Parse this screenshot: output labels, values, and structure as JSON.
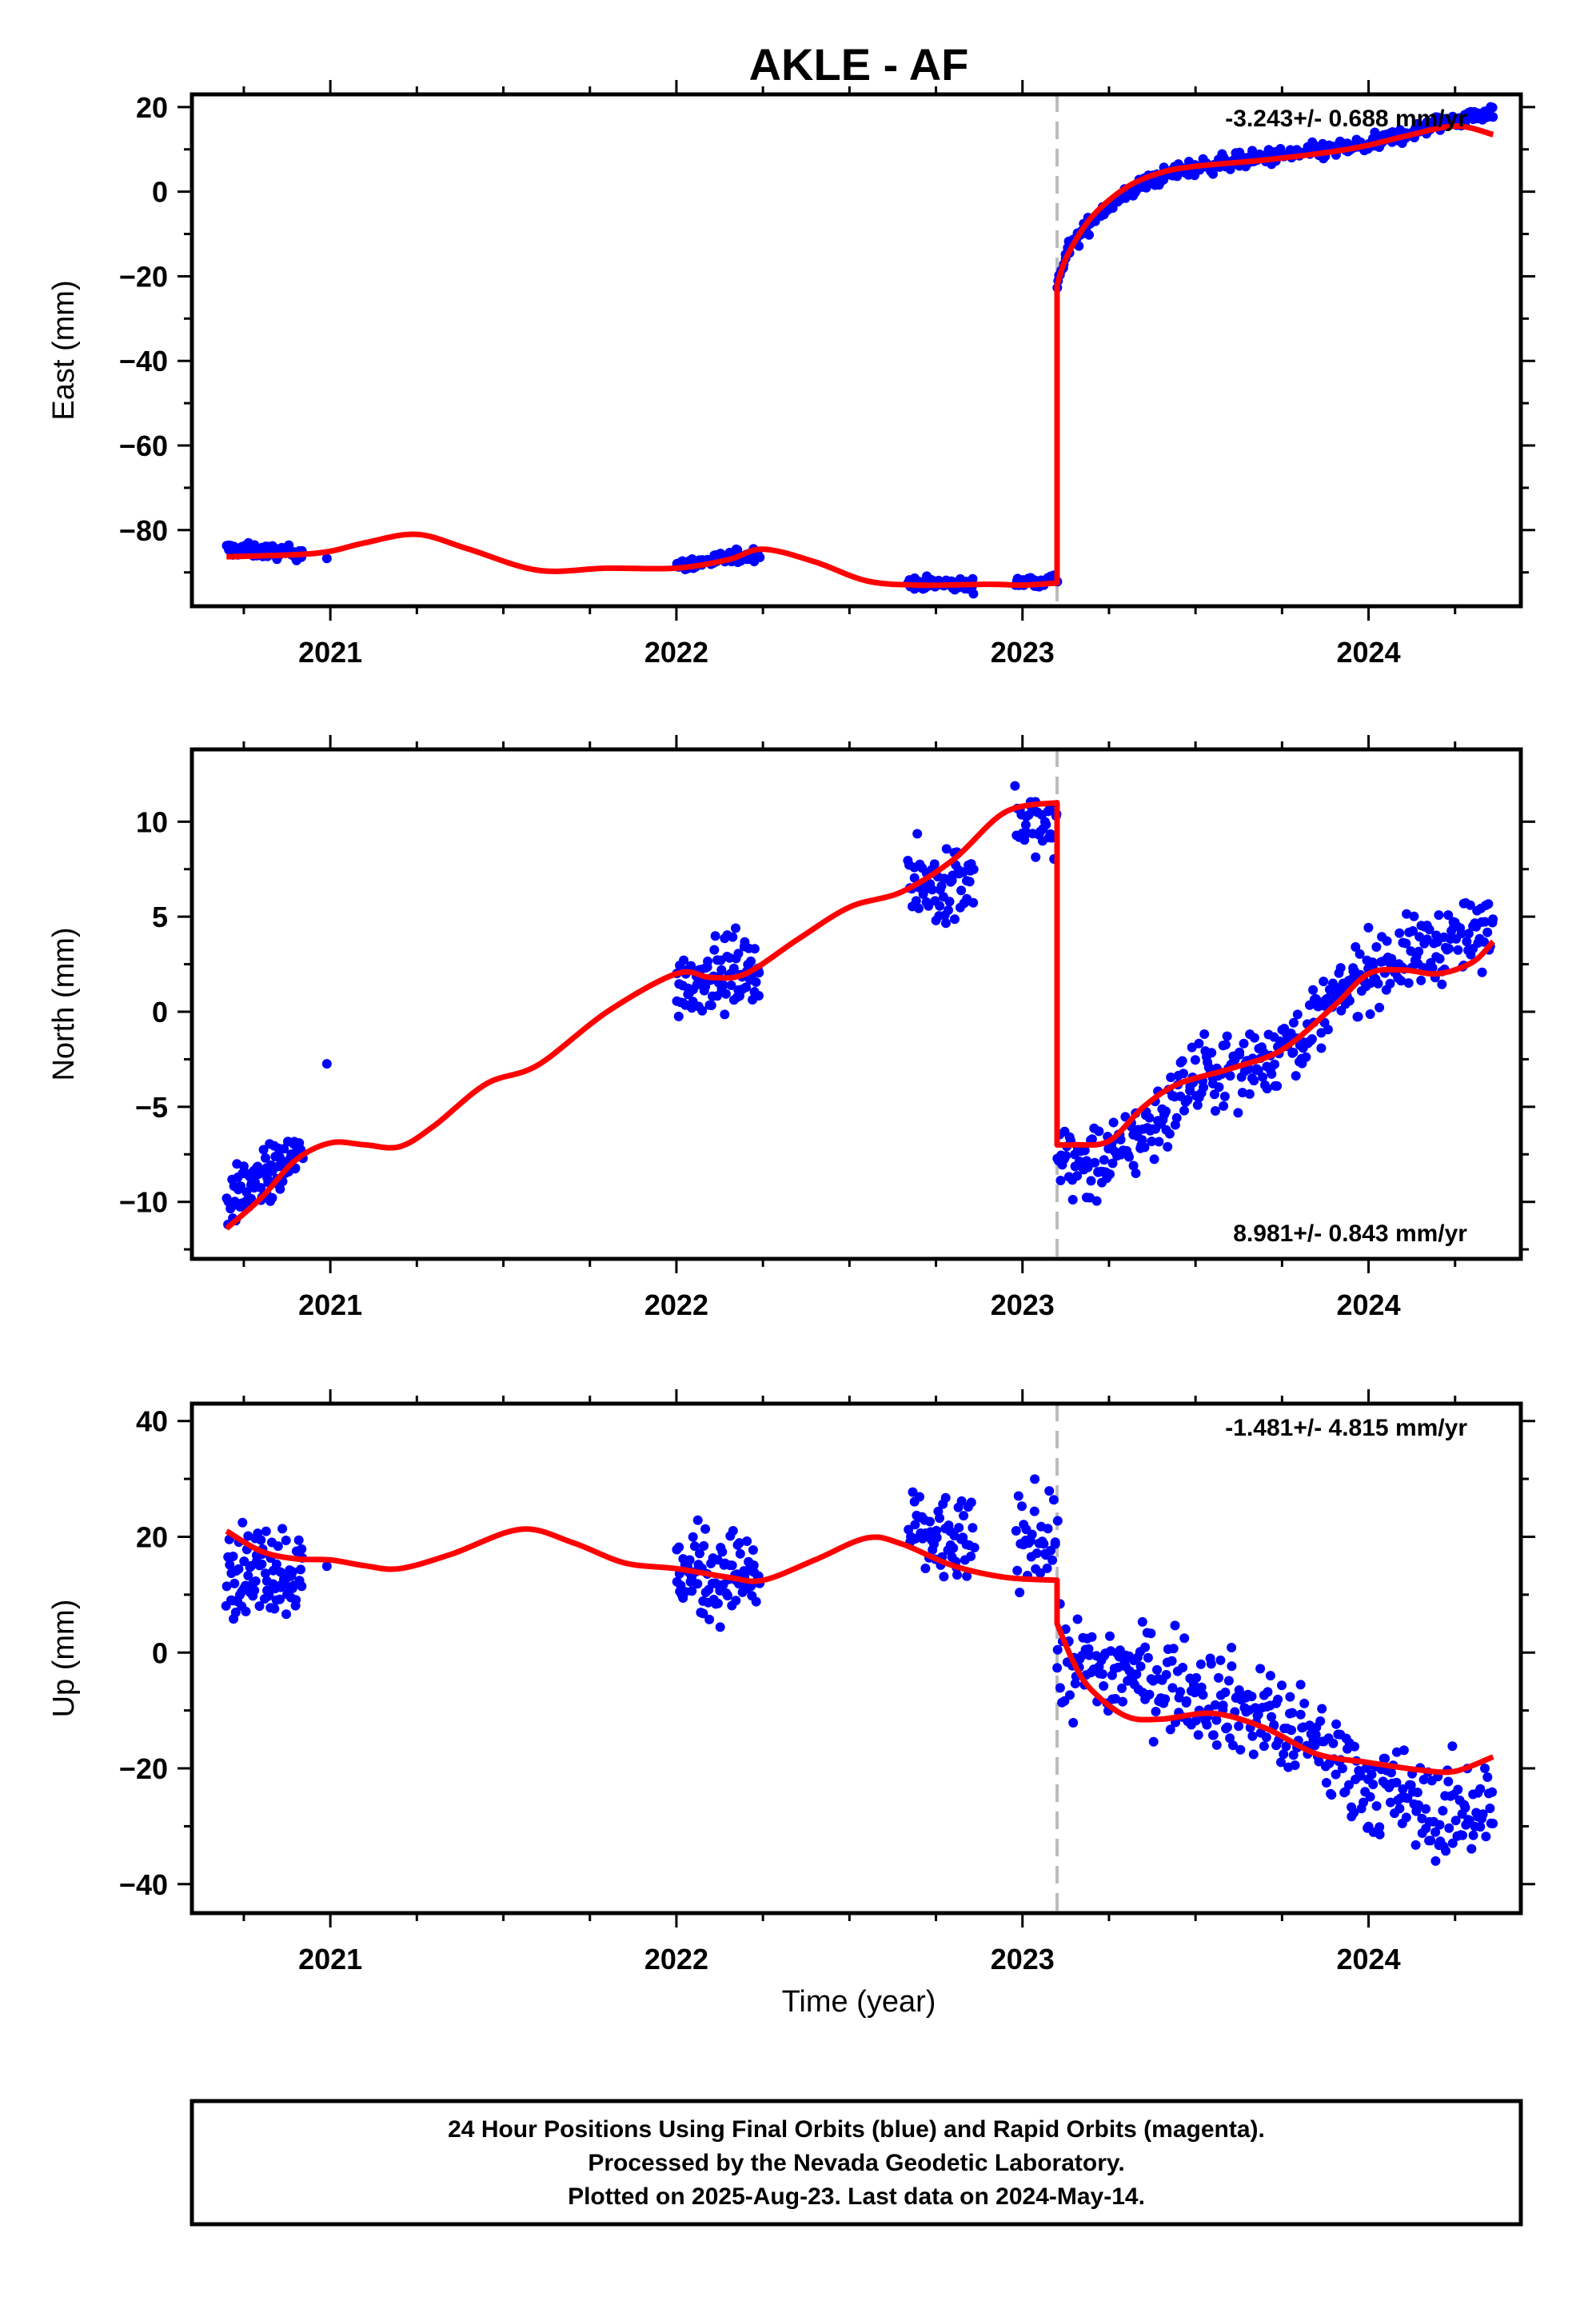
{
  "title": "AKLE - AF",
  "xlabel": "Time (year)",
  "footer": {
    "line1": "24 Hour Positions Using Final Orbits (blue) and Rapid Orbits (magenta).",
    "line2": "Processed by the Nevada Geodetic Laboratory.",
    "line3": "Plotted on 2025-Aug-23. Last data on 2024-May-14."
  },
  "colors": {
    "final_orbits": "#0000ff",
    "rapid_orbits": "#ff00ff",
    "model_fit": "#ff0000",
    "event_line": "#bbbbbb"
  },
  "chart_data": [
    {
      "type": "scatter",
      "panel": "east",
      "ylabel": "East (mm)",
      "rate_label": "-3.243+/- 0.688 mm/yr",
      "rate_position": "top-right",
      "xlim": [
        2020.6,
        2024.44
      ],
      "ylim": [
        -98,
        23
      ],
      "xticks": [
        2021,
        2022,
        2023,
        2024
      ],
      "xtick_labels": [
        "2021",
        "2022",
        "2023",
        "2024"
      ],
      "yticks": [
        20,
        0,
        -20,
        -40,
        -60,
        -80
      ],
      "ytick_labels": [
        "20",
        "0",
        "−20",
        "−40",
        "−60",
        "−80"
      ],
      "event_x": 2023.1,
      "data_segments": [
        {
          "x0": 2020.7,
          "x1": 2020.92,
          "trend": [
            [
              2020.7,
              -84.5
            ],
            [
              2020.92,
              -85.5
            ]
          ],
          "noise": 1.3,
          "n": 80
        },
        {
          "x0": 2020.99,
          "x1": 2020.99,
          "trend": [
            [
              2020.99,
              -86.5
            ]
          ],
          "noise": 0.3,
          "n": 1
        },
        {
          "x0": 2022.0,
          "x1": 2022.24,
          "trend": [
            [
              2022.0,
              -88.5
            ],
            [
              2022.24,
              -85.5
            ]
          ],
          "noise": 1.3,
          "n": 80
        },
        {
          "x0": 2022.67,
          "x1": 2022.86,
          "trend": [
            [
              2022.67,
              -92.5
            ],
            [
              2022.86,
              -93
            ]
          ],
          "noise": 1.2,
          "n": 70
        },
        {
          "x0": 2022.98,
          "x1": 2023.1,
          "trend": [
            [
              2022.98,
              -92.5
            ],
            [
              2023.1,
              -91.5
            ]
          ],
          "noise": 1.2,
          "n": 35
        },
        {
          "x0": 2023.1,
          "x1": 2024.36,
          "trend": [
            [
              2023.1,
              -22
            ],
            [
              2023.13,
              -14
            ],
            [
              2023.22,
              -5
            ],
            [
              2023.35,
              2
            ],
            [
              2023.45,
              5
            ],
            [
              2023.6,
              7
            ],
            [
              2023.8,
              9
            ],
            [
              2024.0,
              11
            ],
            [
              2024.2,
              16
            ],
            [
              2024.36,
              19
            ]
          ],
          "noise": 1.6,
          "n": 380
        }
      ],
      "model_fit": [
        [
          2020.7,
          -86.3
        ],
        [
          2020.9,
          -85.8
        ],
        [
          2021.0,
          -85.0
        ],
        [
          2021.1,
          -83.0
        ],
        [
          2021.25,
          -81.0
        ],
        [
          2021.4,
          -84.5
        ],
        [
          2021.6,
          -89.5
        ],
        [
          2021.8,
          -89.0
        ],
        [
          2022.0,
          -89.0
        ],
        [
          2022.15,
          -87.0
        ],
        [
          2022.25,
          -84.5
        ],
        [
          2022.4,
          -87.5
        ],
        [
          2022.55,
          -92.0
        ],
        [
          2022.7,
          -93.0
        ],
        [
          2022.9,
          -92.8
        ],
        [
          2023.0,
          -93.0
        ],
        [
          2023.1,
          -92.5
        ],
        [
          2023.1,
          -22
        ],
        [
          2023.13,
          -15
        ],
        [
          2023.2,
          -6
        ],
        [
          2023.3,
          1
        ],
        [
          2023.4,
          4.5
        ],
        [
          2023.5,
          6
        ],
        [
          2023.7,
          7.5
        ],
        [
          2023.9,
          9.5
        ],
        [
          2024.0,
          11
        ],
        [
          2024.1,
          13
        ],
        [
          2024.25,
          15.5
        ],
        [
          2024.36,
          13.5
        ]
      ]
    },
    {
      "type": "scatter",
      "panel": "north",
      "ylabel": "North (mm)",
      "rate_label": "8.981+/- 0.843 mm/yr",
      "rate_position": "bottom-right",
      "xlim": [
        2020.6,
        2024.44
      ],
      "ylim": [
        -13,
        13.8
      ],
      "xticks": [
        2021,
        2022,
        2023,
        2024
      ],
      "xtick_labels": [
        "2021",
        "2022",
        "2023",
        "2024"
      ],
      "yticks": [
        10,
        5,
        0,
        -5,
        -10
      ],
      "ytick_labels": [
        "10",
        "5",
        "0",
        "−5",
        "−10"
      ],
      "event_x": 2023.1,
      "data_segments": [
        {
          "x0": 2020.7,
          "x1": 2020.92,
          "trend": [
            [
              2020.7,
              -10
            ],
            [
              2020.92,
              -7.5
            ]
          ],
          "noise": 1.2,
          "n": 90
        },
        {
          "x0": 2020.99,
          "x1": 2020.99,
          "trend": [
            [
              2020.99,
              -2.7
            ]
          ],
          "noise": 0.1,
          "n": 1
        },
        {
          "x0": 2022.0,
          "x1": 2022.24,
          "trend": [
            [
              2022.0,
              1.5
            ],
            [
              2022.24,
              2.5
            ]
          ],
          "noise": 1.5,
          "n": 90
        },
        {
          "x0": 2022.67,
          "x1": 2022.86,
          "trend": [
            [
              2022.67,
              6.5
            ],
            [
              2022.86,
              7.0
            ]
          ],
          "noise": 1.8,
          "n": 60
        },
        {
          "x0": 2022.98,
          "x1": 2023.1,
          "trend": [
            [
              2022.98,
              10.0
            ],
            [
              2023.1,
              9.5
            ]
          ],
          "noise": 1.4,
          "n": 35
        },
        {
          "x0": 2023.1,
          "x1": 2024.36,
          "trend": [
            [
              2023.1,
              -7.5
            ],
            [
              2023.2,
              -8.2
            ],
            [
              2023.35,
              -6.5
            ],
            [
              2023.5,
              -3.5
            ],
            [
              2023.7,
              -2.5
            ],
            [
              2023.85,
              -0.5
            ],
            [
              2024.0,
              2.3
            ],
            [
              2024.2,
              3.5
            ],
            [
              2024.36,
              4.2
            ]
          ],
          "noise": 1.6,
          "n": 380
        }
      ],
      "model_fit": [
        [
          2020.7,
          -11.4
        ],
        [
          2020.8,
          -9.8
        ],
        [
          2020.9,
          -7.8
        ],
        [
          2021.0,
          -6.9
        ],
        [
          2021.1,
          -7.0
        ],
        [
          2021.2,
          -7.1
        ],
        [
          2021.3,
          -6.0
        ],
        [
          2021.45,
          -3.8
        ],
        [
          2021.6,
          -2.8
        ],
        [
          2021.8,
          0.0
        ],
        [
          2022.0,
          2.0
        ],
        [
          2022.1,
          1.8
        ],
        [
          2022.2,
          2.0
        ],
        [
          2022.35,
          3.8
        ],
        [
          2022.5,
          5.5
        ],
        [
          2022.65,
          6.3
        ],
        [
          2022.8,
          8.0
        ],
        [
          2022.95,
          10.5
        ],
        [
          2023.1,
          11.0
        ],
        [
          2023.1,
          -7.0
        ],
        [
          2023.15,
          -7.0
        ],
        [
          2023.25,
          -6.8
        ],
        [
          2023.35,
          -5.0
        ],
        [
          2023.45,
          -3.8
        ],
        [
          2023.6,
          -3.0
        ],
        [
          2023.75,
          -2.0
        ],
        [
          2023.9,
          0.3
        ],
        [
          2024.0,
          2.0
        ],
        [
          2024.1,
          2.2
        ],
        [
          2024.2,
          2.0
        ],
        [
          2024.3,
          2.6
        ],
        [
          2024.36,
          3.7
        ]
      ]
    },
    {
      "type": "scatter",
      "panel": "up",
      "ylabel": "Up (mm)",
      "rate_label": "-1.481+/- 4.815 mm/yr",
      "rate_position": "top-right",
      "xlim": [
        2020.6,
        2024.44
      ],
      "ylim": [
        -45,
        43
      ],
      "xticks": [
        2021,
        2022,
        2023,
        2024
      ],
      "xtick_labels": [
        "2021",
        "2022",
        "2023",
        "2024"
      ],
      "yticks": [
        40,
        20,
        0,
        -20,
        -40
      ],
      "ytick_labels": [
        "40",
        "20",
        "0",
        "−20",
        "−40"
      ],
      "event_x": 2023.1,
      "data_segments": [
        {
          "x0": 2020.7,
          "x1": 2020.92,
          "trend": [
            [
              2020.7,
              15
            ],
            [
              2020.92,
              14
            ]
          ],
          "noise": 6.5,
          "n": 90
        },
        {
          "x0": 2020.99,
          "x1": 2020.99,
          "trend": [
            [
              2020.99,
              15
            ]
          ],
          "noise": 0.3,
          "n": 1
        },
        {
          "x0": 2022.0,
          "x1": 2022.24,
          "trend": [
            [
              2022.0,
              14
            ],
            [
              2022.24,
              13
            ]
          ],
          "noise": 6.5,
          "n": 90
        },
        {
          "x0": 2022.67,
          "x1": 2022.86,
          "trend": [
            [
              2022.67,
              21
            ],
            [
              2022.86,
              18
            ]
          ],
          "noise": 6.5,
          "n": 60
        },
        {
          "x0": 2022.98,
          "x1": 2023.1,
          "trend": [
            [
              2022.98,
              18
            ],
            [
              2023.1,
              22
            ]
          ],
          "noise": 7.5,
          "n": 35
        },
        {
          "x0": 2023.1,
          "x1": 2024.36,
          "trend": [
            [
              2023.1,
              -2
            ],
            [
              2023.3,
              -3
            ],
            [
              2023.5,
              -6
            ],
            [
              2023.7,
              -11
            ],
            [
              2023.9,
              -18
            ],
            [
              2024.0,
              -23
            ],
            [
              2024.2,
              -28
            ],
            [
              2024.36,
              -26
            ]
          ],
          "noise": 7.0,
          "n": 360
        }
      ],
      "model_fit": [
        [
          2020.7,
          21
        ],
        [
          2020.8,
          17.5
        ],
        [
          2020.9,
          16.2
        ],
        [
          2021.0,
          16.0
        ],
        [
          2021.1,
          15.0
        ],
        [
          2021.2,
          14.5
        ],
        [
          2021.35,
          17.0
        ],
        [
          2021.55,
          21.3
        ],
        [
          2021.7,
          19.0
        ],
        [
          2021.85,
          15.5
        ],
        [
          2022.0,
          14.5
        ],
        [
          2022.15,
          13.0
        ],
        [
          2022.25,
          12.5
        ],
        [
          2022.4,
          16.0
        ],
        [
          2022.55,
          19.8
        ],
        [
          2022.65,
          18.8
        ],
        [
          2022.8,
          15.0
        ],
        [
          2022.95,
          13.0
        ],
        [
          2023.1,
          12.5
        ],
        [
          2023.1,
          5
        ],
        [
          2023.15,
          -2
        ],
        [
          2023.2,
          -6.5
        ],
        [
          2023.3,
          -11.0
        ],
        [
          2023.4,
          -11.5
        ],
        [
          2023.55,
          -10.5
        ],
        [
          2023.7,
          -13.0
        ],
        [
          2023.85,
          -17.5
        ],
        [
          2024.0,
          -19.0
        ],
        [
          2024.15,
          -20.3
        ],
        [
          2024.25,
          -20.5
        ],
        [
          2024.36,
          -18.0
        ]
      ]
    }
  ]
}
